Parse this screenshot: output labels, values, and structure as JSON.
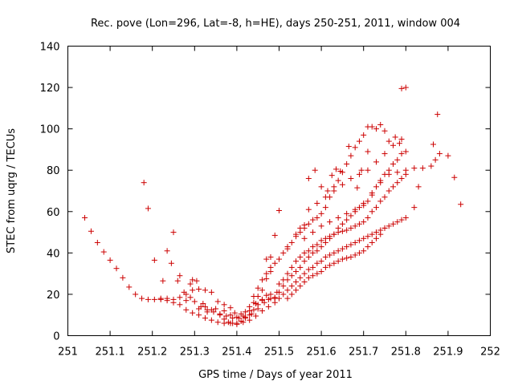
{
  "chart_data": {
    "type": "scatter",
    "title": "Rec. pove (Lon=296, Lat=-8, h=HE), days 250-251, 2011, window 004",
    "xlabel": "GPS time / Days of year 2011",
    "ylabel": "STEC from uqrg / TECUs",
    "xlim": [
      251,
      252
    ],
    "ylim": [
      0,
      140
    ],
    "x_ticks": [
      "251",
      "251.1",
      "251.2",
      "251.3",
      "251.4",
      "251.5",
      "251.6",
      "251.7",
      "251.8",
      "251.9",
      "252"
    ],
    "y_ticks": [
      "0",
      "20",
      "40",
      "60",
      "80",
      "100",
      "120",
      "140"
    ],
    "grid": false,
    "marker": "+",
    "color": "#cc0000",
    "points": [
      [
        251.04,
        57
      ],
      [
        251.055,
        50.5
      ],
      [
        251.07,
        45
      ],
      [
        251.085,
        40.5
      ],
      [
        251.1,
        36.5
      ],
      [
        251.115,
        32.5
      ],
      [
        251.13,
        28
      ],
      [
        251.145,
        23.5
      ],
      [
        251.16,
        20
      ],
      [
        251.175,
        18
      ],
      [
        251.19,
        17.5
      ],
      [
        251.205,
        17.5
      ],
      [
        251.22,
        18
      ],
      [
        251.235,
        18
      ],
      [
        251.25,
        17.5
      ],
      [
        251.265,
        18.5
      ],
      [
        251.28,
        20
      ],
      [
        251.295,
        22
      ],
      [
        251.31,
        22.5
      ],
      [
        251.325,
        22
      ],
      [
        251.34,
        21
      ],
      [
        251.355,
        16.5
      ],
      [
        251.37,
        12
      ],
      [
        251.385,
        10
      ],
      [
        251.4,
        9
      ],
      [
        251.415,
        9.5
      ],
      [
        251.43,
        12
      ],
      [
        251.445,
        15.5
      ],
      [
        251.46,
        17
      ],
      [
        251.475,
        17.5
      ],
      [
        251.49,
        18.5
      ],
      [
        251.18,
        74
      ],
      [
        251.19,
        61.5
      ],
      [
        251.205,
        36.5
      ],
      [
        251.225,
        26.5
      ],
      [
        251.235,
        41
      ],
      [
        251.245,
        35
      ],
      [
        251.25,
        50
      ],
      [
        251.26,
        26.5
      ],
      [
        251.265,
        29
      ],
      [
        251.275,
        21
      ],
      [
        251.28,
        17
      ],
      [
        251.29,
        25
      ],
      [
        251.295,
        27
      ],
      [
        251.305,
        26.5
      ],
      [
        251.31,
        13
      ],
      [
        251.32,
        15.5
      ],
      [
        251.325,
        14
      ],
      [
        251.33,
        11.5
      ],
      [
        251.34,
        12.5
      ],
      [
        251.35,
        13
      ],
      [
        251.36,
        10
      ],
      [
        251.37,
        8
      ],
      [
        251.38,
        6.5
      ],
      [
        251.39,
        6
      ],
      [
        251.4,
        6
      ],
      [
        251.41,
        7
      ],
      [
        251.42,
        8.5
      ],
      [
        251.43,
        10
      ],
      [
        251.44,
        12.5
      ],
      [
        251.45,
        15
      ],
      [
        251.46,
        17.5
      ],
      [
        251.47,
        19.5
      ],
      [
        251.48,
        20
      ],
      [
        251.22,
        17.5
      ],
      [
        251.235,
        17
      ],
      [
        251.25,
        16
      ],
      [
        251.265,
        15
      ],
      [
        251.28,
        12.5
      ],
      [
        251.295,
        11
      ],
      [
        251.31,
        10
      ],
      [
        251.325,
        8.5
      ],
      [
        251.34,
        7.5
      ],
      [
        251.355,
        6.5
      ],
      [
        251.37,
        6
      ],
      [
        251.385,
        6
      ],
      [
        251.4,
        5.5
      ],
      [
        251.415,
        6.5
      ],
      [
        251.43,
        7.5
      ],
      [
        251.445,
        9.5
      ],
      [
        251.46,
        12
      ],
      [
        251.475,
        14
      ],
      [
        251.49,
        16
      ],
      [
        251.5,
        18
      ],
      [
        251.29,
        18.5
      ],
      [
        251.3,
        16.5
      ],
      [
        251.315,
        14
      ],
      [
        251.33,
        12.5
      ],
      [
        251.345,
        11.5
      ],
      [
        251.36,
        10.5
      ],
      [
        251.375,
        9.5
      ],
      [
        251.39,
        8.5
      ],
      [
        251.405,
        8.5
      ],
      [
        251.42,
        9
      ],
      [
        251.435,
        10.5
      ],
      [
        251.45,
        13
      ],
      [
        251.465,
        16
      ],
      [
        251.48,
        18
      ],
      [
        251.495,
        21
      ],
      [
        251.37,
        15
      ],
      [
        251.385,
        13.5
      ],
      [
        251.395,
        11
      ],
      [
        251.41,
        10.5
      ],
      [
        251.42,
        11.5
      ],
      [
        251.43,
        14
      ],
      [
        251.44,
        19
      ],
      [
        251.45,
        23
      ],
      [
        251.46,
        27
      ],
      [
        251.47,
        30
      ],
      [
        251.48,
        33
      ],
      [
        251.44,
        16
      ],
      [
        251.45,
        19
      ],
      [
        251.46,
        22
      ],
      [
        251.47,
        27.5
      ],
      [
        251.48,
        31
      ],
      [
        251.49,
        35
      ],
      [
        251.5,
        37
      ],
      [
        251.51,
        40
      ],
      [
        251.52,
        42
      ],
      [
        251.53,
        45
      ],
      [
        251.54,
        48
      ],
      [
        251.55,
        50
      ],
      [
        251.56,
        52
      ],
      [
        251.57,
        54
      ],
      [
        251.58,
        56
      ],
      [
        251.59,
        57
      ],
      [
        251.6,
        59
      ],
      [
        251.61,
        62
      ],
      [
        251.62,
        67
      ],
      [
        251.63,
        72
      ],
      [
        251.64,
        75
      ],
      [
        251.65,
        79
      ],
      [
        251.66,
        83
      ],
      [
        251.67,
        87
      ],
      [
        251.68,
        91
      ],
      [
        251.69,
        94
      ],
      [
        251.7,
        97
      ],
      [
        251.71,
        101
      ],
      [
        251.72,
        101
      ],
      [
        251.73,
        100
      ],
      [
        251.74,
        102
      ],
      [
        251.75,
        99
      ],
      [
        251.47,
        37
      ],
      [
        251.48,
        38
      ],
      [
        251.49,
        48.5
      ],
      [
        251.5,
        60.5
      ],
      [
        251.52,
        43
      ],
      [
        251.54,
        49
      ],
      [
        251.55,
        52
      ],
      [
        251.56,
        53.5
      ],
      [
        251.57,
        76
      ],
      [
        251.585,
        80
      ],
      [
        251.6,
        72
      ],
      [
        251.615,
        70
      ],
      [
        251.625,
        77.5
      ],
      [
        251.635,
        80.5
      ],
      [
        251.645,
        79.5
      ],
      [
        251.665,
        91.5
      ],
      [
        251.685,
        71.5
      ],
      [
        251.695,
        80
      ],
      [
        251.71,
        89
      ],
      [
        251.49,
        18
      ],
      [
        251.5,
        21
      ],
      [
        251.51,
        24
      ],
      [
        251.52,
        27
      ],
      [
        251.53,
        29
      ],
      [
        251.54,
        31
      ],
      [
        251.55,
        33
      ],
      [
        251.56,
        36
      ],
      [
        251.57,
        38
      ],
      [
        251.58,
        40
      ],
      [
        251.59,
        41
      ],
      [
        251.6,
        43
      ],
      [
        251.61,
        45
      ],
      [
        251.62,
        47
      ],
      [
        251.63,
        49
      ],
      [
        251.64,
        52
      ],
      [
        251.65,
        54
      ],
      [
        251.66,
        56
      ],
      [
        251.67,
        58
      ],
      [
        251.68,
        60
      ],
      [
        251.69,
        62
      ],
      [
        251.7,
        63
      ],
      [
        251.71,
        65
      ],
      [
        251.72,
        68
      ],
      [
        251.73,
        72
      ],
      [
        251.74,
        75
      ],
      [
        251.75,
        78
      ],
      [
        251.76,
        80
      ],
      [
        251.77,
        83
      ],
      [
        251.78,
        85
      ],
      [
        251.79,
        88
      ],
      [
        251.8,
        89
      ],
      [
        251.5,
        25
      ],
      [
        251.51,
        27
      ],
      [
        251.52,
        30
      ],
      [
        251.53,
        33
      ],
      [
        251.54,
        36
      ],
      [
        251.55,
        38
      ],
      [
        251.56,
        40
      ],
      [
        251.57,
        41
      ],
      [
        251.58,
        43
      ],
      [
        251.59,
        44
      ],
      [
        251.6,
        46
      ],
      [
        251.61,
        47
      ],
      [
        251.62,
        48
      ],
      [
        251.63,
        49
      ],
      [
        251.64,
        50
      ],
      [
        251.65,
        50.5
      ],
      [
        251.66,
        51
      ],
      [
        251.67,
        52
      ],
      [
        251.68,
        53
      ],
      [
        251.69,
        54
      ],
      [
        251.7,
        55
      ],
      [
        251.71,
        57
      ],
      [
        251.72,
        60
      ],
      [
        251.73,
        62
      ],
      [
        251.74,
        65
      ],
      [
        251.75,
        67
      ],
      [
        251.76,
        70
      ],
      [
        251.77,
        72
      ],
      [
        251.78,
        74
      ],
      [
        251.79,
        76
      ],
      [
        251.8,
        78
      ],
      [
        251.51,
        20
      ],
      [
        251.52,
        22
      ],
      [
        251.53,
        24
      ],
      [
        251.54,
        26
      ],
      [
        251.55,
        28
      ],
      [
        251.56,
        30
      ],
      [
        251.57,
        32
      ],
      [
        251.58,
        33
      ],
      [
        251.59,
        35
      ],
      [
        251.6,
        36
      ],
      [
        251.61,
        38
      ],
      [
        251.62,
        39
      ],
      [
        251.63,
        40
      ],
      [
        251.64,
        41
      ],
      [
        251.65,
        42
      ],
      [
        251.66,
        43
      ],
      [
        251.67,
        44
      ],
      [
        251.68,
        45
      ],
      [
        251.69,
        46
      ],
      [
        251.7,
        47
      ],
      [
        251.71,
        48
      ],
      [
        251.72,
        49
      ],
      [
        251.73,
        50
      ],
      [
        251.74,
        51
      ],
      [
        251.75,
        52
      ],
      [
        251.76,
        53
      ],
      [
        251.77,
        54
      ],
      [
        251.78,
        55
      ],
      [
        251.79,
        56
      ],
      [
        251.8,
        57
      ],
      [
        251.52,
        18
      ],
      [
        251.53,
        20
      ],
      [
        251.54,
        22
      ],
      [
        251.55,
        24
      ],
      [
        251.56,
        26
      ],
      [
        251.57,
        28
      ],
      [
        251.58,
        29
      ],
      [
        251.59,
        30
      ],
      [
        251.6,
        31
      ],
      [
        251.61,
        33
      ],
      [
        251.62,
        34
      ],
      [
        251.63,
        35
      ],
      [
        251.64,
        36
      ],
      [
        251.65,
        37
      ],
      [
        251.66,
        37.5
      ],
      [
        251.67,
        38
      ],
      [
        251.68,
        39
      ],
      [
        251.69,
        40
      ],
      [
        251.7,
        41
      ],
      [
        251.71,
        43
      ],
      [
        251.72,
        45
      ],
      [
        251.73,
        47
      ],
      [
        251.74,
        49
      ],
      [
        251.75,
        52
      ],
      [
        251.56,
        47
      ],
      [
        251.58,
        50
      ],
      [
        251.6,
        53
      ],
      [
        251.62,
        55
      ],
      [
        251.64,
        57
      ],
      [
        251.66,
        59
      ],
      [
        251.68,
        61
      ],
      [
        251.7,
        64
      ],
      [
        251.72,
        69
      ],
      [
        251.74,
        74
      ],
      [
        251.76,
        78
      ],
      [
        251.78,
        79
      ],
      [
        251.8,
        80
      ],
      [
        251.82,
        81
      ],
      [
        251.84,
        81
      ],
      [
        251.86,
        82
      ],
      [
        251.87,
        85
      ],
      [
        251.88,
        88
      ],
      [
        251.9,
        87
      ],
      [
        251.57,
        61
      ],
      [
        251.59,
        64
      ],
      [
        251.61,
        67
      ],
      [
        251.63,
        70
      ],
      [
        251.65,
        73
      ],
      [
        251.67,
        76
      ],
      [
        251.69,
        78
      ],
      [
        251.71,
        80
      ],
      [
        251.73,
        84
      ],
      [
        251.75,
        88
      ],
      [
        251.77,
        92
      ],
      [
        251.79,
        95
      ],
      [
        251.76,
        94
      ],
      [
        251.775,
        96
      ],
      [
        251.785,
        93
      ],
      [
        251.79,
        119.5
      ],
      [
        251.8,
        120
      ],
      [
        251.82,
        62
      ],
      [
        251.83,
        72
      ],
      [
        251.865,
        92.5
      ],
      [
        251.875,
        107
      ],
      [
        251.915,
        76.5
      ],
      [
        251.93,
        63.5
      ]
    ]
  }
}
